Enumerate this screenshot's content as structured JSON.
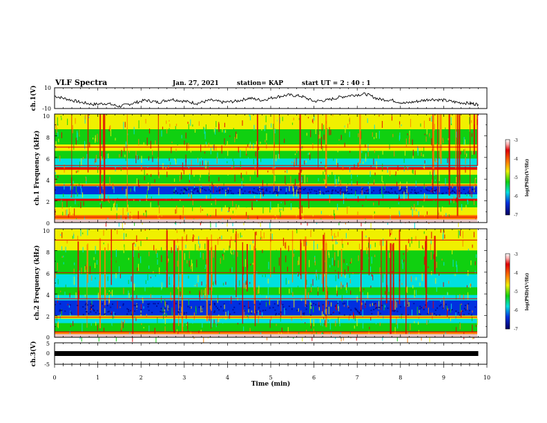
{
  "header": {
    "title": "VLF Spectra",
    "date": "Jan. 27, 2021",
    "station": "station= KAP",
    "start": "start  UT =   2 : 40 : 1"
  },
  "chart_data": [
    {
      "type": "line",
      "panel": "ch1-waveform",
      "ylabel": "ch.1(V)",
      "ylim": [
        -10,
        10
      ],
      "yticks": [
        "10",
        "-10"
      ],
      "xlim": [
        0,
        10
      ],
      "x": [
        0,
        0.3,
        0.6,
        0.9,
        1.2,
        1.5,
        1.8,
        2.1,
        2.4,
        2.7,
        3.0,
        3.3,
        3.6,
        3.9,
        4.2,
        4.5,
        4.8,
        5.1,
        5.4,
        5.7,
        6.0,
        6.3,
        6.6,
        6.9,
        7.2,
        7.5,
        7.8,
        8.1,
        8.4,
        8.7,
        9.0,
        9.3,
        9.6,
        9.8
      ],
      "y": [
        2,
        -1,
        -4,
        -6,
        -5,
        -8,
        -5,
        -2,
        -4,
        -1,
        -3,
        -5,
        -2,
        -4,
        -3,
        0,
        -2,
        1,
        3,
        2,
        -3,
        -2,
        1,
        3,
        4,
        -1,
        -2,
        -5,
        -3,
        -1,
        -2,
        -4,
        -5,
        -6
      ]
    },
    {
      "type": "heatmap",
      "panel": "ch1-spectrogram",
      "ylabel": "ch.1 Frequency (kHz)",
      "yticks": [
        "0",
        "2",
        "4",
        "6",
        "8",
        "10"
      ],
      "ylim": [
        0,
        10
      ],
      "xlim": [
        0,
        10
      ],
      "colorbar": {
        "label": "log(PSD)(V²/Hz)",
        "ticks": [
          "-3",
          "-4",
          "-5",
          "-6",
          "-7"
        ],
        "range": [
          -7,
          -3
        ]
      }
    },
    {
      "type": "heatmap",
      "panel": "ch2-spectrogram",
      "ylabel": "ch.2 Frequency (kHz)",
      "yticks": [
        "0",
        "2",
        "4",
        "6",
        "8",
        "10"
      ],
      "ylim": [
        0,
        10
      ],
      "xlim": [
        0,
        10
      ],
      "colorbar": {
        "label": "log(PSD)(V²/Hz)",
        "ticks": [
          "-3",
          "-4",
          "-5",
          "-6",
          "-7"
        ],
        "range": [
          -7,
          -3
        ]
      }
    },
    {
      "type": "line",
      "panel": "ch3-waveform",
      "ylabel": "ch.3(V)",
      "ylim": [
        -5,
        5
      ],
      "yticks": [
        "5",
        "0",
        "-5"
      ],
      "xlim": [
        0,
        10
      ],
      "x": [
        0,
        9.8
      ],
      "y": [
        0,
        0
      ]
    }
  ],
  "xaxis": {
    "label": "Time  (min)",
    "ticks": [
      "0",
      "1",
      "2",
      "3",
      "4",
      "5",
      "6",
      "7",
      "8",
      "9",
      "10"
    ]
  },
  "colors": {
    "red": "#e00000",
    "orange": "#ff8000",
    "yellow": "#f0f000",
    "green": "#10d010",
    "cyan": "#00e0e0",
    "blue": "#0030e0",
    "navy": "#000080"
  }
}
